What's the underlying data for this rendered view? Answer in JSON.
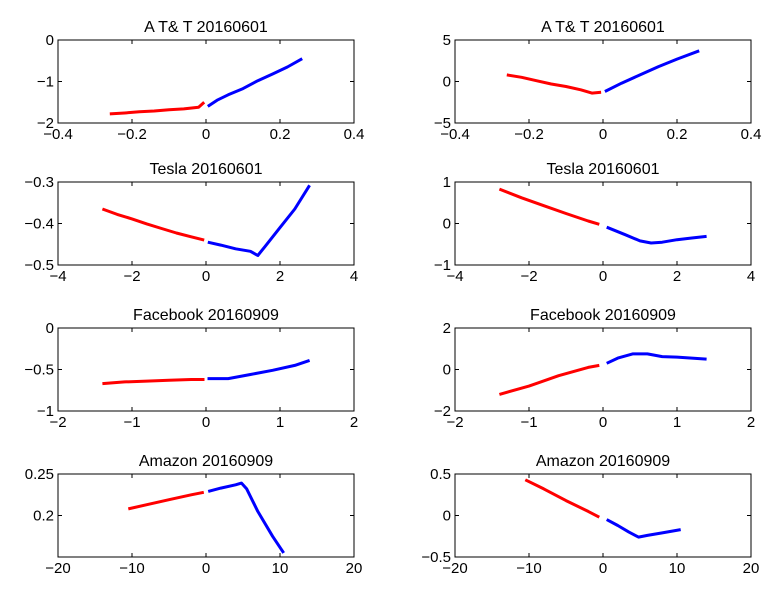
{
  "figure": {
    "background": "#ffffff",
    "series_colors": {
      "red": "#ff0000",
      "blue": "#0000ff"
    }
  },
  "chart_data": [
    {
      "type": "line",
      "title": "A T& T 20160601",
      "xlim": [
        -0.4,
        0.4
      ],
      "ylim": [
        -2,
        0
      ],
      "xticks": [
        -0.4,
        -0.2,
        0,
        0.2,
        0.4
      ],
      "xtick_labels": [
        "−0.4",
        "−0.2",
        "0",
        "0.2",
        "0.4"
      ],
      "yticks": [
        -2,
        -1,
        0
      ],
      "ytick_labels": [
        "−2",
        "−1",
        "0"
      ],
      "grid": false,
      "series": [
        {
          "color": "#ff0000",
          "x": [
            -0.26,
            -0.22,
            -0.18,
            -0.14,
            -0.1,
            -0.06,
            -0.02,
            -0.005
          ],
          "y": [
            -1.78,
            -1.76,
            -1.73,
            -1.71,
            -1.68,
            -1.66,
            -1.62,
            -1.5
          ]
        },
        {
          "color": "#0000ff",
          "x": [
            0.005,
            0.03,
            0.06,
            0.1,
            0.14,
            0.18,
            0.22,
            0.26
          ],
          "y": [
            -1.6,
            -1.45,
            -1.32,
            -1.17,
            -0.98,
            -0.82,
            -0.65,
            -0.45
          ]
        }
      ]
    },
    {
      "type": "line",
      "title": "A T& T 20160601",
      "xlim": [
        -0.4,
        0.4
      ],
      "ylim": [
        -5,
        5
      ],
      "xticks": [
        -0.4,
        -0.2,
        0,
        0.2,
        0.4
      ],
      "xtick_labels": [
        "−0.4",
        "−0.2",
        "0",
        "0.2",
        "0.4"
      ],
      "yticks": [
        -5,
        0,
        5
      ],
      "ytick_labels": [
        "−5",
        "0",
        "5"
      ],
      "grid": false,
      "series": [
        {
          "color": "#ff0000",
          "x": [
            -0.26,
            -0.22,
            -0.18,
            -0.14,
            -0.1,
            -0.06,
            -0.03,
            -0.005
          ],
          "y": [
            0.8,
            0.5,
            0.1,
            -0.3,
            -0.6,
            -1.0,
            -1.4,
            -1.3
          ]
        },
        {
          "color": "#0000ff",
          "x": [
            0.005,
            0.05,
            0.1,
            0.15,
            0.2,
            0.26
          ],
          "y": [
            -1.2,
            -0.2,
            0.8,
            1.8,
            2.7,
            3.7
          ]
        }
      ]
    },
    {
      "type": "line",
      "title": "Tesla 20160601",
      "xlim": [
        -4,
        4
      ],
      "ylim": [
        -0.5,
        -0.3
      ],
      "xticks": [
        -4,
        -2,
        0,
        2,
        4
      ],
      "xtick_labels": [
        "−4",
        "−2",
        "0",
        "2",
        "4"
      ],
      "yticks": [
        -0.5,
        -0.4,
        -0.3
      ],
      "ytick_labels": [
        "−0.5",
        "−0.4",
        "−0.3"
      ],
      "grid": false,
      "series": [
        {
          "color": "#ff0000",
          "x": [
            -2.8,
            -2.4,
            -2.0,
            -1.6,
            -1.2,
            -0.8,
            -0.4,
            -0.05
          ],
          "y": [
            -0.365,
            -0.378,
            -0.389,
            -0.401,
            -0.412,
            -0.423,
            -0.432,
            -0.44
          ]
        },
        {
          "color": "#0000ff",
          "x": [
            0.05,
            0.4,
            0.8,
            1.2,
            1.4,
            1.6,
            2.0,
            2.4,
            2.8
          ],
          "y": [
            -0.445,
            -0.452,
            -0.461,
            -0.467,
            -0.477,
            -0.455,
            -0.41,
            -0.365,
            -0.308
          ]
        }
      ]
    },
    {
      "type": "line",
      "title": "Tesla 20160601",
      "xlim": [
        -4,
        4
      ],
      "ylim": [
        -1,
        1
      ],
      "xticks": [
        -4,
        -2,
        0,
        2,
        4
      ],
      "xtick_labels": [
        "−4",
        "−2",
        "0",
        "2",
        "4"
      ],
      "yticks": [
        -1,
        0,
        1
      ],
      "ytick_labels": [
        "−1",
        "0",
        "1"
      ],
      "grid": false,
      "series": [
        {
          "color": "#ff0000",
          "x": [
            -2.8,
            -2.2,
            -1.6,
            -1.0,
            -0.4,
            -0.1
          ],
          "y": [
            0.83,
            0.62,
            0.43,
            0.24,
            0.06,
            -0.02
          ]
        },
        {
          "color": "#0000ff",
          "x": [
            0.1,
            0.6,
            1.0,
            1.3,
            1.6,
            2.0,
            2.4,
            2.8
          ],
          "y": [
            -0.09,
            -0.27,
            -0.42,
            -0.47,
            -0.45,
            -0.39,
            -0.35,
            -0.31
          ]
        }
      ]
    },
    {
      "type": "line",
      "title": "Facebook 20160909",
      "xlim": [
        -2,
        2
      ],
      "ylim": [
        -1,
        0
      ],
      "xticks": [
        -2,
        -1,
        0,
        1,
        2
      ],
      "xtick_labels": [
        "−2",
        "−1",
        "0",
        "1",
        "2"
      ],
      "yticks": [
        -1,
        -0.5,
        0
      ],
      "ytick_labels": [
        "−1",
        "−0.5",
        "0"
      ],
      "grid": false,
      "series": [
        {
          "color": "#ff0000",
          "x": [
            -1.4,
            -1.1,
            -0.8,
            -0.5,
            -0.2,
            -0.02
          ],
          "y": [
            -0.67,
            -0.65,
            -0.64,
            -0.63,
            -0.62,
            -0.62
          ]
        },
        {
          "color": "#0000ff",
          "x": [
            0.02,
            0.3,
            0.6,
            0.9,
            1.2,
            1.4
          ],
          "y": [
            -0.61,
            -0.61,
            -0.56,
            -0.51,
            -0.45,
            -0.39
          ]
        }
      ]
    },
    {
      "type": "line",
      "title": "Facebook 20160909",
      "xlim": [
        -2,
        2
      ],
      "ylim": [
        -2,
        2
      ],
      "xticks": [
        -2,
        -1,
        0,
        1,
        2
      ],
      "xtick_labels": [
        "−2",
        "−1",
        "0",
        "1",
        "2"
      ],
      "yticks": [
        -2,
        0,
        2
      ],
      "ytick_labels": [
        "−2",
        "0",
        "2"
      ],
      "grid": false,
      "series": [
        {
          "color": "#ff0000",
          "x": [
            -1.4,
            -1.0,
            -0.6,
            -0.2,
            -0.05
          ],
          "y": [
            -1.2,
            -0.8,
            -0.3,
            0.1,
            0.2
          ]
        },
        {
          "color": "#0000ff",
          "x": [
            0.05,
            0.2,
            0.4,
            0.6,
            0.8,
            1.0,
            1.2,
            1.4
          ],
          "y": [
            0.3,
            0.55,
            0.75,
            0.75,
            0.62,
            0.6,
            0.55,
            0.5
          ]
        }
      ]
    },
    {
      "type": "line",
      "title": "Amazon 20160909",
      "xlim": [
        -20,
        20
      ],
      "ylim": [
        0.15,
        0.25
      ],
      "xticks": [
        -20,
        -10,
        0,
        10,
        20
      ],
      "xtick_labels": [
        "−20",
        "−10",
        "0",
        "10",
        "20"
      ],
      "yticks": [
        0.2,
        0.25
      ],
      "ytick_labels": [
        "0.2",
        "0.25"
      ],
      "grid": false,
      "series": [
        {
          "color": "#ff0000",
          "x": [
            -10.5,
            -8,
            -5,
            -2,
            -0.3
          ],
          "y": [
            0.208,
            0.213,
            0.219,
            0.225,
            0.228
          ]
        },
        {
          "color": "#0000ff",
          "x": [
            0.3,
            2,
            4,
            4.8,
            5.5,
            7,
            9,
            10.5
          ],
          "y": [
            0.229,
            0.233,
            0.237,
            0.239,
            0.232,
            0.205,
            0.175,
            0.155
          ]
        }
      ]
    },
    {
      "type": "line",
      "title": "Amazon 20160909",
      "xlim": [
        -20,
        20
      ],
      "ylim": [
        -0.5,
        0.5
      ],
      "xticks": [
        -20,
        -10,
        0,
        10,
        20
      ],
      "xtick_labels": [
        "−20",
        "−10",
        "0",
        "10",
        "20"
      ],
      "yticks": [
        -0.5,
        0,
        0.5
      ],
      "ytick_labels": [
        "−0.5",
        "0",
        "0.5"
      ],
      "grid": false,
      "series": [
        {
          "color": "#ff0000",
          "x": [
            -10.5,
            -8,
            -5,
            -2,
            -0.5
          ],
          "y": [
            0.43,
            0.32,
            0.18,
            0.05,
            -0.02
          ]
        },
        {
          "color": "#0000ff",
          "x": [
            0.5,
            2,
            3.5,
            4.8,
            6,
            8,
            10.5
          ],
          "y": [
            -0.05,
            -0.12,
            -0.2,
            -0.26,
            -0.24,
            -0.21,
            -0.17
          ]
        }
      ]
    }
  ]
}
